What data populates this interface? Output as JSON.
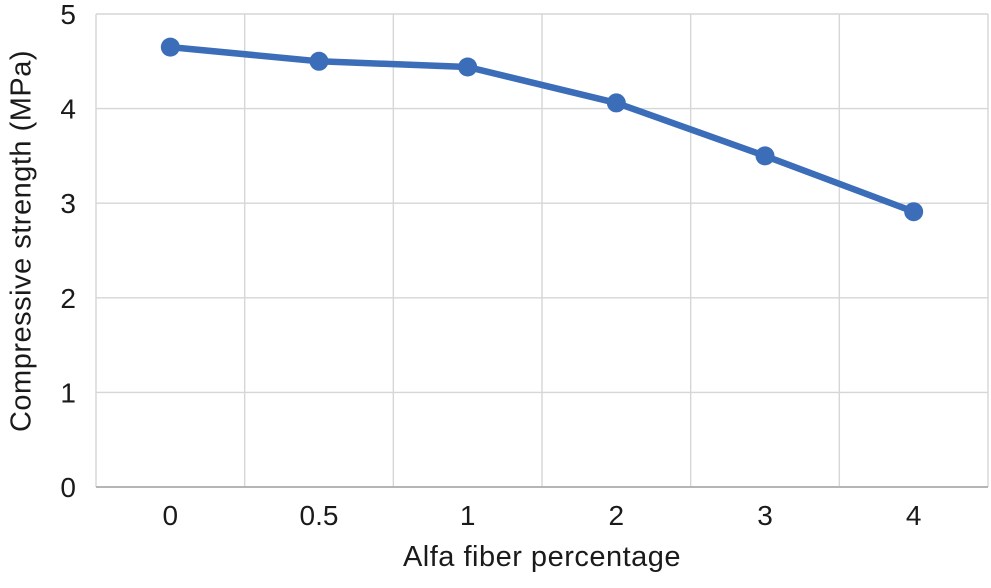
{
  "chart_data": {
    "type": "line",
    "title": "",
    "xlabel": "Alfa fiber percentage",
    "ylabel": "Compressive strength (MPa)",
    "categories": [
      "0",
      "0.5",
      "1",
      "2",
      "3",
      "4"
    ],
    "series": [
      {
        "name": "Compressive strength",
        "values": [
          4.65,
          4.5,
          4.44,
          4.06,
          3.5,
          2.91
        ]
      }
    ],
    "ylim": [
      0,
      5
    ],
    "yticks": [
      0,
      1,
      2,
      3,
      4,
      5
    ],
    "grid": true,
    "legend_position": "none",
    "colors": {
      "line": "#3b6db8",
      "marker": "#3b6db8",
      "gridline": "#d6d6d6",
      "axis_line": "#b5b5b5",
      "text": "#1a1a1a",
      "background": "#ffffff"
    }
  }
}
